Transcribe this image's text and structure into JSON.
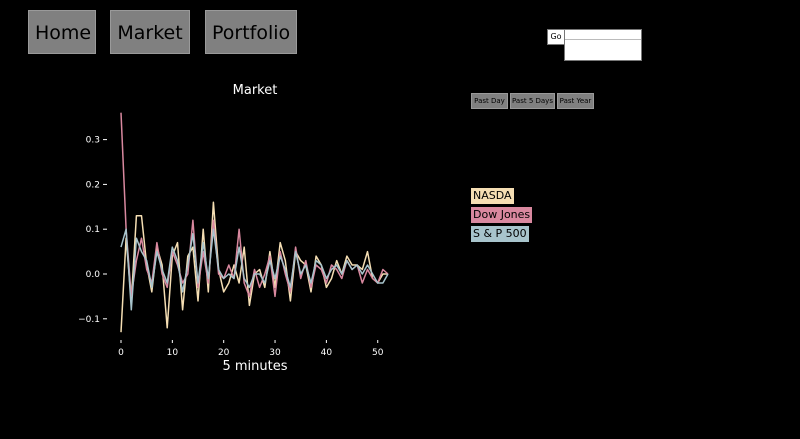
{
  "nav": {
    "home_label": "Home",
    "market_label": "Market",
    "portfolio_label": "Portfolio"
  },
  "search": {
    "go_label": "Go",
    "value": ""
  },
  "ranges": {
    "past_day": "Past Day",
    "past_5_days": "Past 5 Days",
    "past_year": "Past Year"
  },
  "legend": [
    {
      "label": "NASDA",
      "color": "#f5deb3"
    },
    {
      "label": "Dow Jones",
      "color": "#d9889f"
    },
    {
      "label": "S & P 500",
      "color": "#a8c4cc"
    }
  ],
  "chart_data": {
    "type": "line",
    "title": "Market",
    "xlabel": "5 minutes",
    "ylabel": "",
    "xlim": [
      0,
      52
    ],
    "ylim": [
      -0.13,
      0.37
    ],
    "xticks": [
      0,
      10,
      20,
      30,
      40,
      50
    ],
    "yticks": [
      -0.1,
      0.0,
      0.1,
      0.2,
      0.3
    ],
    "grid": false,
    "x": [
      0,
      1,
      2,
      3,
      4,
      5,
      6,
      7,
      8,
      9,
      10,
      11,
      12,
      13,
      14,
      15,
      16,
      17,
      18,
      19,
      20,
      21,
      22,
      23,
      24,
      25,
      26,
      27,
      28,
      29,
      30,
      31,
      32,
      33,
      34,
      35,
      36,
      37,
      38,
      39,
      40,
      41,
      42,
      43,
      44,
      45,
      46,
      47,
      48,
      49,
      50,
      51,
      52
    ],
    "series": [
      {
        "name": "NASDA",
        "color": "#f5deb3",
        "values": [
          -0.13,
          0.08,
          -0.06,
          0.13,
          0.13,
          0.02,
          -0.04,
          0.06,
          0.02,
          -0.12,
          0.04,
          0.07,
          -0.08,
          0.04,
          0.06,
          -0.06,
          0.1,
          -0.04,
          0.16,
          0.01,
          -0.04,
          -0.02,
          0.02,
          -0.02,
          0.06,
          -0.07,
          0.0,
          0.01,
          -0.03,
          0.05,
          -0.03,
          0.07,
          0.03,
          -0.06,
          0.05,
          0.03,
          0.02,
          -0.04,
          0.04,
          0.02,
          -0.03,
          -0.01,
          0.03,
          0.0,
          0.04,
          0.02,
          0.02,
          0.01,
          0.05,
          -0.01,
          -0.02,
          0.0,
          0.0
        ]
      },
      {
        "name": "Dow Jones",
        "color": "#d9889f",
        "values": [
          0.36,
          0.1,
          -0.05,
          0.03,
          0.08,
          0.01,
          -0.02,
          0.07,
          0.0,
          -0.03,
          0.05,
          0.02,
          -0.02,
          0.0,
          0.12,
          -0.03,
          0.05,
          -0.02,
          0.12,
          0.0,
          -0.01,
          0.02,
          -0.01,
          0.1,
          -0.02,
          -0.05,
          0.01,
          -0.03,
          0.0,
          0.04,
          -0.05,
          0.05,
          0.0,
          -0.04,
          0.06,
          -0.01,
          0.03,
          -0.03,
          0.02,
          0.01,
          -0.02,
          0.02,
          0.01,
          -0.01,
          0.03,
          0.01,
          0.02,
          -0.02,
          0.01,
          -0.01,
          -0.02,
          0.01,
          0.0
        ]
      },
      {
        "name": "S & P 500",
        "color": "#a8c4cc",
        "values": [
          0.06,
          0.1,
          -0.08,
          0.08,
          0.05,
          0.03,
          -0.03,
          0.05,
          0.01,
          -0.02,
          0.06,
          0.03,
          -0.04,
          0.02,
          0.09,
          -0.02,
          0.07,
          -0.01,
          0.1,
          0.01,
          -0.01,
          0.0,
          -0.01,
          0.06,
          -0.01,
          -0.03,
          0.0,
          0.0,
          -0.02,
          0.03,
          -0.01,
          0.04,
          0.01,
          -0.03,
          0.05,
          0.0,
          0.02,
          -0.02,
          0.03,
          0.02,
          -0.01,
          0.01,
          0.02,
          0.0,
          0.03,
          0.01,
          0.02,
          0.0,
          0.02,
          0.0,
          -0.02,
          -0.02,
          0.0
        ]
      }
    ]
  }
}
